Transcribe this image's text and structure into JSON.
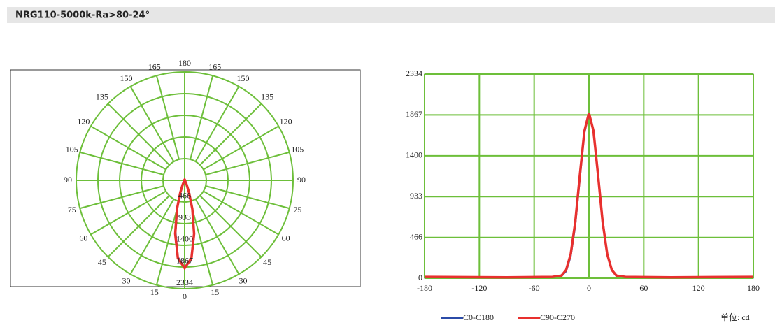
{
  "header": {
    "title": "NRG110-5000k-Ra>80-24°"
  },
  "unit_label": "单位: cd",
  "chart_data": [
    {
      "type": "polar",
      "rlim": [
        0,
        2334
      ],
      "rticks": [
        466,
        933,
        1400,
        1867,
        2334
      ],
      "angle_ticks": [
        0,
        15,
        30,
        45,
        60,
        75,
        90,
        105,
        120,
        135,
        150,
        165,
        180
      ],
      "grid_color": "#6dbf3a",
      "theta": [
        -180,
        -90,
        -40,
        -30,
        -25,
        -20,
        -15,
        -10,
        -5,
        0,
        5,
        10,
        15,
        20,
        25,
        30,
        40,
        90,
        180
      ],
      "series": [
        {
          "name": "C0-C180",
          "color": "#2b4ba8",
          "values": [
            15,
            10,
            15,
            25,
            80,
            250,
            600,
            1130,
            1660,
            1880,
            1690,
            1190,
            660,
            285,
            100,
            32,
            15,
            10,
            15
          ]
        },
        {
          "name": "C90-C270",
          "color": "#e8302e",
          "values": [
            15,
            10,
            15,
            30,
            95,
            275,
            640,
            1170,
            1682,
            1890,
            1682,
            1170,
            640,
            275,
            95,
            30,
            15,
            10,
            15
          ]
        }
      ]
    },
    {
      "type": "line",
      "x": [
        -180,
        -90,
        -40,
        -30,
        -25,
        -20,
        -15,
        -10,
        -5,
        0,
        5,
        10,
        15,
        20,
        25,
        30,
        40,
        90,
        180
      ],
      "xlim": [
        -180,
        180
      ],
      "xticks": [
        -180,
        -120,
        -60,
        0,
        60,
        120,
        180
      ],
      "ylim": [
        0,
        2334
      ],
      "yticks": [
        0,
        466,
        933,
        1400,
        1867,
        2334
      ],
      "grid": true,
      "grid_color": "#6dbf3a",
      "series": [
        {
          "name": "C0-C180",
          "color": "#2b4ba8",
          "values": [
            15,
            10,
            15,
            25,
            80,
            250,
            600,
            1130,
            1660,
            1880,
            1690,
            1190,
            660,
            285,
            100,
            32,
            15,
            10,
            15
          ]
        },
        {
          "name": "C90-C270",
          "color": "#e8302e",
          "values": [
            15,
            10,
            15,
            30,
            95,
            275,
            640,
            1170,
            1682,
            1890,
            1682,
            1170,
            640,
            275,
            95,
            30,
            15,
            10,
            15
          ]
        }
      ]
    }
  ]
}
